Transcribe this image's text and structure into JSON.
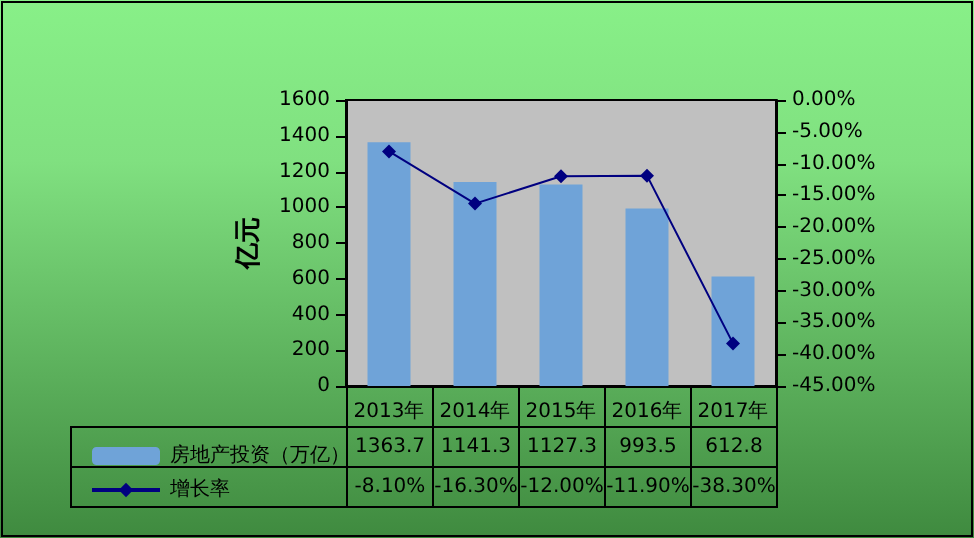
{
  "chart_data": {
    "type": "bar",
    "ylabel": "亿元",
    "categories": [
      "2013年",
      "2014年",
      "2015年",
      "2016年",
      "2017年"
    ],
    "series": [
      {
        "name": "房地产投资（万亿）",
        "color": "#6fa3d8",
        "values": [
          1363.7,
          1141.3,
          1127.3,
          993.5,
          612.8
        ],
        "value_labels": [
          "1363.7",
          "1141.3",
          "1127.3",
          "993.5",
          "612.8"
        ]
      },
      {
        "name": "增长率",
        "type": "line",
        "axis": "y2",
        "color": "#000080",
        "values": [
          -8.1,
          -16.3,
          -12.0,
          -11.9,
          -38.3
        ],
        "value_labels": [
          "-8.10%",
          "-16.30%",
          "-12.00%",
          "-11.90%",
          "-38.30%"
        ]
      }
    ],
    "ylim": [
      0,
      1600
    ],
    "yticks": [
      0,
      200,
      400,
      600,
      800,
      1000,
      1200,
      1400,
      1600
    ],
    "y2lim": [
      -45,
      0
    ],
    "y2ticks": [
      {
        "value": 0,
        "label": "0.00%"
      },
      {
        "value": -5,
        "label": "-5.00%"
      },
      {
        "value": -10,
        "label": "-10.00%"
      },
      {
        "value": -15,
        "label": "-15.00%"
      },
      {
        "value": -20,
        "label": "-20.00%"
      },
      {
        "value": -25,
        "label": "-25.00%"
      },
      {
        "value": -30,
        "label": "-30.00%"
      },
      {
        "value": -35,
        "label": "-35.00%"
      },
      {
        "value": -40,
        "label": "-40.00%"
      },
      {
        "value": -45,
        "label": "-45.00%"
      }
    ],
    "grid": false,
    "legend": "bottom left",
    "marker": "diamond",
    "line_style": "solid"
  }
}
